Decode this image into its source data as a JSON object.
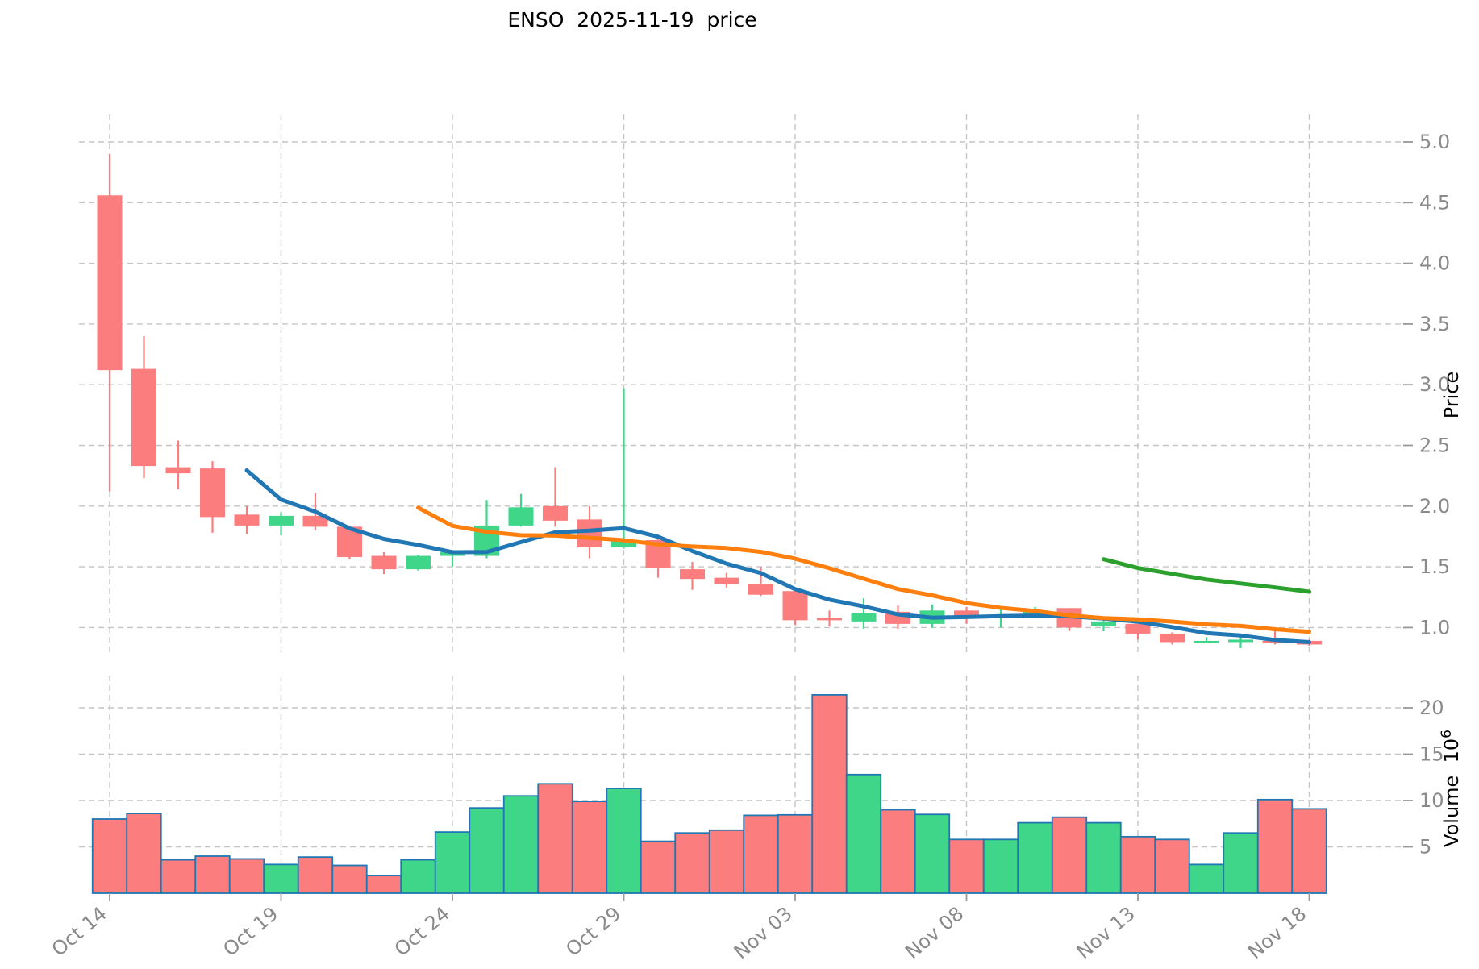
{
  "title": "ENSO  2025-11-19  price",
  "colors": {
    "up": "#3fd68a",
    "down": "#fb7d7d",
    "volume_edge": "#2077b4",
    "ma5": "#2077b4",
    "ma10": "#ff7f0e",
    "ma30": "#2ca02c",
    "grid": "#c4c4c4",
    "tick_text": "#8a8a8a",
    "tick_mark": "#999999"
  },
  "chart_data": {
    "type": "candlestick_with_volume",
    "symbol": "ENSO",
    "title_date": "2025-11-19",
    "title": "ENSO  2025-11-19  price",
    "x_tick_labels": [
      "Oct 14",
      "Oct 19",
      "Oct 24",
      "Oct 29",
      "Nov 03",
      "Nov 08",
      "Nov 13",
      "Nov 18"
    ],
    "x_tick_indices": [
      0,
      5,
      10,
      15,
      20,
      25,
      30,
      35
    ],
    "price_axis": {
      "label": "Price",
      "tick_labels": [
        "1.0",
        "1.5",
        "2.0",
        "2.5",
        "3.0",
        "3.5",
        "4.0",
        "4.5",
        "5.0"
      ],
      "tick_values": [
        1.0,
        1.5,
        2.0,
        2.5,
        3.0,
        3.5,
        4.0,
        4.5,
        5.0
      ],
      "range": [
        0.78,
        5.25
      ],
      "grid": true,
      "side": "right"
    },
    "volume_axis": {
      "label": "Volume",
      "label_with_unit": "Volume  10",
      "unit_exponent": "6",
      "tick_labels": [
        "5",
        "10",
        "15",
        "20"
      ],
      "tick_values": [
        5,
        10,
        15,
        20
      ],
      "range": [
        0,
        22.6
      ],
      "grid": true,
      "side": "right"
    },
    "moving_averages": [
      {
        "name": "MA5",
        "window": 5,
        "color": "#2077b4",
        "stroke_width": 5
      },
      {
        "name": "MA10",
        "window": 10,
        "color": "#ff7f0e",
        "stroke_width": 5
      },
      {
        "name": "MA30",
        "window": 30,
        "color": "#2ca02c",
        "stroke_width": 5
      }
    ],
    "candles": [
      {
        "d": "Oct 14",
        "o": 4.56,
        "h": 4.9,
        "l": 2.12,
        "c": 3.12,
        "v": 8.0
      },
      {
        "d": "Oct 15",
        "o": 3.13,
        "h": 3.4,
        "l": 2.23,
        "c": 2.33,
        "v": 8.6
      },
      {
        "d": "Oct 16",
        "o": 2.32,
        "h": 2.54,
        "l": 2.14,
        "c": 2.27,
        "v": 3.6
      },
      {
        "d": "Oct 17",
        "o": 2.31,
        "h": 2.37,
        "l": 1.78,
        "c": 1.91,
        "v": 4.0
      },
      {
        "d": "Oct 18",
        "o": 1.93,
        "h": 2.0,
        "l": 1.77,
        "c": 1.84,
        "v": 3.7
      },
      {
        "d": "Oct 19",
        "o": 1.84,
        "h": 1.95,
        "l": 1.76,
        "c": 1.92,
        "v": 3.1
      },
      {
        "d": "Oct 20",
        "o": 1.92,
        "h": 2.11,
        "l": 1.8,
        "c": 1.83,
        "v": 3.9
      },
      {
        "d": "Oct 21",
        "o": 1.83,
        "h": 1.84,
        "l": 1.56,
        "c": 1.58,
        "v": 3.0
      },
      {
        "d": "Oct 22",
        "o": 1.59,
        "h": 1.62,
        "l": 1.44,
        "c": 1.48,
        "v": 1.9
      },
      {
        "d": "Oct 23",
        "o": 1.48,
        "h": 1.6,
        "l": 1.47,
        "c": 1.59,
        "v": 3.6
      },
      {
        "d": "Oct 24",
        "o": 1.59,
        "h": 1.63,
        "l": 1.5,
        "c": 1.62,
        "v": 6.6
      },
      {
        "d": "Oct 25",
        "o": 1.59,
        "h": 2.05,
        "l": 1.57,
        "c": 1.84,
        "v": 9.2
      },
      {
        "d": "Oct 26",
        "o": 1.84,
        "h": 2.1,
        "l": 1.83,
        "c": 1.99,
        "v": 10.5
      },
      {
        "d": "Oct 27",
        "o": 2.0,
        "h": 2.32,
        "l": 1.83,
        "c": 1.88,
        "v": 11.8
      },
      {
        "d": "Oct 28",
        "o": 1.89,
        "h": 2.0,
        "l": 1.57,
        "c": 1.66,
        "v": 9.9
      },
      {
        "d": "Oct 29",
        "o": 1.66,
        "h": 2.97,
        "l": 1.65,
        "c": 1.72,
        "v": 11.3
      },
      {
        "d": "Oct 30",
        "o": 1.72,
        "h": 1.73,
        "l": 1.41,
        "c": 1.49,
        "v": 5.6
      },
      {
        "d": "Oct 31",
        "o": 1.48,
        "h": 1.54,
        "l": 1.31,
        "c": 1.4,
        "v": 6.5
      },
      {
        "d": "Nov 01",
        "o": 1.41,
        "h": 1.45,
        "l": 1.33,
        "c": 1.36,
        "v": 6.8
      },
      {
        "d": "Nov 02",
        "o": 1.36,
        "h": 1.5,
        "l": 1.26,
        "c": 1.27,
        "v": 8.4
      },
      {
        "d": "Nov 03",
        "o": 1.3,
        "h": 1.3,
        "l": 1.02,
        "c": 1.06,
        "v": 8.45
      },
      {
        "d": "Nov 04",
        "o": 1.08,
        "h": 1.14,
        "l": 1.01,
        "c": 1.06,
        "v": 21.4
      },
      {
        "d": "Nov 05",
        "o": 1.05,
        "h": 1.24,
        "l": 0.99,
        "c": 1.12,
        "v": 12.8
      },
      {
        "d": "Nov 06",
        "o": 1.13,
        "h": 1.18,
        "l": 0.99,
        "c": 1.03,
        "v": 9.0
      },
      {
        "d": "Nov 07",
        "o": 1.03,
        "h": 1.19,
        "l": 1.0,
        "c": 1.14,
        "v": 8.5
      },
      {
        "d": "Nov 08",
        "o": 1.14,
        "h": 1.17,
        "l": 1.03,
        "c": 1.08,
        "v": 5.8
      },
      {
        "d": "Nov 09",
        "o": 1.09,
        "h": 1.17,
        "l": 1.0,
        "c": 1.1,
        "v": 5.8
      },
      {
        "d": "Nov 10",
        "o": 1.09,
        "h": 1.17,
        "l": 1.08,
        "c": 1.14,
        "v": 7.6
      },
      {
        "d": "Nov 11",
        "o": 1.16,
        "h": 1.16,
        "l": 0.97,
        "c": 1.0,
        "v": 8.2
      },
      {
        "d": "Nov 12",
        "o": 1.01,
        "h": 1.07,
        "l": 0.97,
        "c": 1.05,
        "v": 7.6
      },
      {
        "d": "Nov 13",
        "o": 1.03,
        "h": 1.03,
        "l": 0.9,
        "c": 0.95,
        "v": 6.1
      },
      {
        "d": "Nov 14",
        "o": 0.95,
        "h": 0.96,
        "l": 0.86,
        "c": 0.88,
        "v": 5.8
      },
      {
        "d": "Nov 15",
        "o": 0.88,
        "h": 0.92,
        "l": 0.87,
        "c": 0.89,
        "v": 3.1
      },
      {
        "d": "Nov 16",
        "o": 0.88,
        "h": 0.95,
        "l": 0.83,
        "c": 0.9,
        "v": 6.5
      },
      {
        "d": "Nov 17",
        "o": 0.89,
        "h": 0.99,
        "l": 0.86,
        "c": 0.87,
        "v": 10.1
      },
      {
        "d": "Nov 18",
        "o": 0.89,
        "h": 0.9,
        "l": 0.85,
        "c": 0.86,
        "v": 9.1
      }
    ]
  }
}
